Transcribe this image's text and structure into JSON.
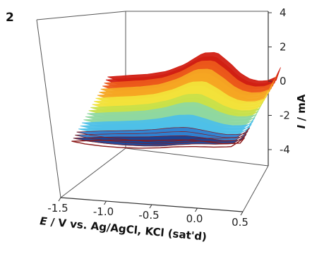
{
  "chart_data": {
    "type": "line",
    "panel_label": "2",
    "title": "",
    "xlabel_symbol": "E",
    "xlabel_rest": " / V vs. Ag/AgCl, KCl (sat'd)",
    "ylabel_symbol": "I",
    "ylabel_rest": " / mA",
    "xlim": [
      -1.5,
      0.5
    ],
    "ylim": [
      -4,
      4
    ],
    "x_ticks": [
      "-1.5",
      "-1.0",
      "-0.5",
      "0.0",
      "0.5"
    ],
    "y_ticks": [
      "4",
      "2",
      "0",
      "-2",
      "-4"
    ],
    "grid": false,
    "legend": "none",
    "plot_style": "3D waterfall of successive cyclic voltammograms",
    "colormap": [
      "#1a3f8f",
      "#2f7fd0",
      "#4ec0e8",
      "#8fd8a0",
      "#c8e04a",
      "#f2e23a",
      "#f5a623",
      "#ec5a1a",
      "#d11f13"
    ],
    "outline_color": "#8b1a1a",
    "scan_count": 22,
    "first_scan": {
      "forward": {
        "E": [
          -1.45,
          -1.2,
          -1.0,
          -0.8,
          -0.6,
          -0.4,
          -0.25,
          -0.1,
          0.0,
          0.1,
          0.2,
          0.3,
          0.4,
          0.45
        ],
        "I": [
          -0.7,
          -0.3,
          0.0,
          0.5,
          1.5,
          3.0,
          3.2,
          2.0,
          1.0,
          0.4,
          0.2,
          0.3,
          0.8,
          2.0
        ]
      },
      "reverse": {
        "E": [
          0.45,
          0.4,
          0.3,
          0.2,
          0.1,
          0.0,
          -0.1,
          -0.25,
          -0.4,
          -0.55,
          -0.7,
          -0.9,
          -1.1,
          -1.3,
          -1.45
        ],
        "I": [
          2.0,
          0.4,
          -0.2,
          -0.4,
          -0.5,
          -0.7,
          -1.2,
          -2.5,
          -3.4,
          -3.5,
          -2.8,
          -2.0,
          -1.6,
          -1.2,
          -0.7
        ]
      }
    },
    "last_scan": {
      "forward": {
        "E": [
          -1.45,
          -1.2,
          -1.0,
          -0.8,
          -0.6,
          -0.4,
          -0.2,
          0.0,
          0.2,
          0.4,
          0.45
        ],
        "I": [
          -0.8,
          -0.5,
          -0.3,
          -0.15,
          0.0,
          0.2,
          0.4,
          0.4,
          0.3,
          0.5,
          1.2
        ]
      },
      "reverse": {
        "E": [
          0.45,
          0.3,
          0.1,
          -0.1,
          -0.3,
          -0.5,
          -0.7,
          -0.9,
          -1.1,
          -1.3,
          -1.45
        ],
        "I": [
          1.2,
          0.0,
          -0.2,
          -0.3,
          -0.5,
          -0.8,
          -1.0,
          -1.1,
          -1.1,
          -1.0,
          -0.8
        ]
      }
    }
  }
}
